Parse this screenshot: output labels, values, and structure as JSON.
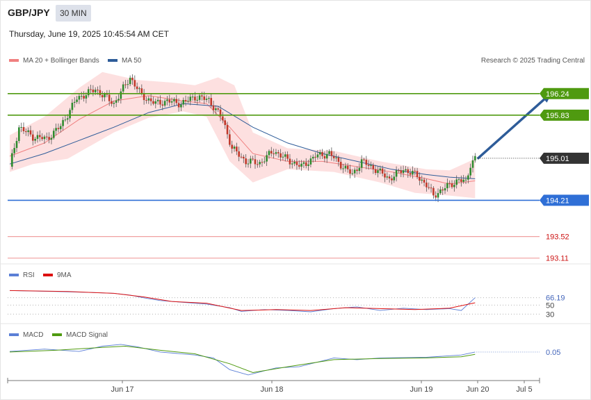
{
  "header": {
    "symbol": "GBP/JPY",
    "interval": "30 MIN",
    "datetime": "Thursday, June 19, 2025 10:45:54 AM CET"
  },
  "chart_data": {
    "type": "candlestick",
    "credit": "Research © 2025 Trading Central",
    "legend": [
      {
        "name": "MA 20 + Bollinger Bands",
        "color": "#f08080"
      },
      {
        "name": "MA 50",
        "color": "#2e5c99"
      }
    ],
    "x_ticks": [
      "Jun 17",
      "Jun 18",
      "Jun 19",
      "Jun 20",
      "Jul 5"
    ],
    "price_axis": {
      "min": 193.0,
      "max": 196.7
    },
    "price_path": [
      [
        0,
        194.85
      ],
      [
        4,
        195.6
      ],
      [
        10,
        195.42
      ],
      [
        16,
        195.38
      ],
      [
        22,
        195.62
      ],
      [
        29,
        196.15
      ],
      [
        37,
        196.32
      ],
      [
        45,
        196.05
      ],
      [
        52,
        196.55
      ],
      [
        57,
        196.2
      ],
      [
        63,
        196.05
      ],
      [
        68,
        196.1
      ],
      [
        74,
        196.05
      ],
      [
        80,
        196.18
      ],
      [
        86,
        196.12
      ],
      [
        92,
        195.75
      ],
      [
        96,
        195.2
      ],
      [
        102,
        194.95
      ],
      [
        108,
        194.92
      ],
      [
        114,
        195.15
      ],
      [
        120,
        194.98
      ],
      [
        126,
        194.85
      ],
      [
        132,
        195.05
      ],
      [
        138,
        195.1
      ],
      [
        144,
        194.85
      ],
      [
        148,
        194.7
      ],
      [
        152,
        194.95
      ],
      [
        158,
        194.8
      ],
      [
        164,
        194.62
      ],
      [
        170,
        194.8
      ],
      [
        176,
        194.68
      ],
      [
        180,
        194.5
      ],
      [
        183,
        194.3
      ],
      [
        188,
        194.45
      ],
      [
        194,
        194.6
      ],
      [
        197,
        194.55
      ],
      [
        199,
        194.9
      ],
      [
        201,
        195.01
      ]
    ],
    "ma20_path": [
      [
        0,
        195.05
      ],
      [
        15,
        195.3
      ],
      [
        30,
        195.75
      ],
      [
        45,
        196.1
      ],
      [
        60,
        196.2
      ],
      [
        75,
        196.1
      ],
      [
        85,
        196.05
      ],
      [
        95,
        195.6
      ],
      [
        105,
        195.1
      ],
      [
        120,
        194.95
      ],
      [
        135,
        194.95
      ],
      [
        150,
        194.85
      ],
      [
        165,
        194.75
      ],
      [
        180,
        194.62
      ],
      [
        190,
        194.52
      ],
      [
        201,
        194.58
      ]
    ],
    "ma50_path": [
      [
        0,
        194.9
      ],
      [
        15,
        195.1
      ],
      [
        30,
        195.35
      ],
      [
        45,
        195.6
      ],
      [
        60,
        195.88
      ],
      [
        75,
        196.05
      ],
      [
        90,
        196.0
      ],
      [
        105,
        195.6
      ],
      [
        120,
        195.3
      ],
      [
        135,
        195.1
      ],
      [
        150,
        194.95
      ],
      [
        165,
        194.8
      ],
      [
        180,
        194.7
      ],
      [
        190,
        194.65
      ],
      [
        201,
        194.62
      ]
    ],
    "bollinger_upper": [
      [
        0,
        195.45
      ],
      [
        15,
        195.8
      ],
      [
        30,
        196.35
      ],
      [
        40,
        196.65
      ],
      [
        55,
        196.5
      ],
      [
        70,
        196.45
      ],
      [
        80,
        196.4
      ],
      [
        90,
        196.55
      ],
      [
        97,
        196.4
      ],
      [
        105,
        195.5
      ],
      [
        120,
        195.2
      ],
      [
        140,
        195.15
      ],
      [
        160,
        194.95
      ],
      [
        180,
        194.8
      ],
      [
        190,
        194.78
      ],
      [
        201,
        195.0
      ]
    ],
    "bollinger_lower": [
      [
        0,
        194.75
      ],
      [
        10,
        194.9
      ],
      [
        25,
        195.0
      ],
      [
        35,
        195.25
      ],
      [
        45,
        195.5
      ],
      [
        60,
        195.78
      ],
      [
        75,
        195.9
      ],
      [
        85,
        195.8
      ],
      [
        95,
        194.95
      ],
      [
        105,
        194.55
      ],
      [
        120,
        194.8
      ],
      [
        140,
        194.75
      ],
      [
        160,
        194.55
      ],
      [
        175,
        194.35
      ],
      [
        190,
        194.3
      ],
      [
        201,
        194.25
      ]
    ],
    "forecast_arrow": {
      "from": [
        202,
        195.0
      ],
      "to": [
        230,
        196.24
      ]
    },
    "levels": [
      {
        "value": "196.24",
        "price": 196.24,
        "color": "#4f9a10",
        "style": "solid",
        "tag": true
      },
      {
        "value": "195.83",
        "price": 195.83,
        "color": "#4f9a10",
        "style": "solid",
        "tag": true
      },
      {
        "value": "195.01",
        "price": 195.01,
        "color": "#333333",
        "style": "dotted",
        "tag": true
      },
      {
        "value": "194.21",
        "price": 194.21,
        "color": "#2f6fd6",
        "style": "solid",
        "tag": true
      },
      {
        "value": "193.52",
        "price": 193.52,
        "color": "#f0a0a0",
        "style": "solid",
        "tag": false
      },
      {
        "value": "193.11",
        "price": 193.11,
        "color": "#f0a0a0",
        "style": "solid",
        "tag": false
      }
    ],
    "rsi": {
      "legend": [
        {
          "name": "RSI",
          "color": "#5b7fd6"
        },
        {
          "name": "9MA",
          "color": "#dd1111"
        }
      ],
      "ticks": [
        {
          "label": "66.19",
          "value": 66.19
        },
        {
          "label": "50",
          "value": 50
        },
        {
          "label": "30",
          "value": 30
        }
      ],
      "range": [
        15,
        95
      ],
      "rsi_path": [
        [
          0,
          82
        ],
        [
          20,
          80
        ],
        [
          35,
          78
        ],
        [
          45,
          76
        ],
        [
          52,
          72
        ],
        [
          58,
          66
        ],
        [
          65,
          60
        ],
        [
          75,
          56
        ],
        [
          85,
          52
        ],
        [
          95,
          44
        ],
        [
          100,
          36
        ],
        [
          110,
          40
        ],
        [
          120,
          38
        ],
        [
          130,
          35
        ],
        [
          140,
          42
        ],
        [
          150,
          46
        ],
        [
          160,
          38
        ],
        [
          170,
          43
        ],
        [
          180,
          40
        ],
        [
          190,
          42
        ],
        [
          195,
          38
        ],
        [
          201,
          66.19
        ]
      ],
      "ma_path": [
        [
          0,
          82
        ],
        [
          25,
          80
        ],
        [
          45,
          76
        ],
        [
          58,
          68
        ],
        [
          70,
          58
        ],
        [
          85,
          54
        ],
        [
          100,
          38
        ],
        [
          115,
          40
        ],
        [
          130,
          38
        ],
        [
          145,
          44
        ],
        [
          160,
          42
        ],
        [
          175,
          40
        ],
        [
          190,
          43
        ],
        [
          201,
          55
        ]
      ]
    },
    "macd": {
      "legend": [
        {
          "name": "MACD",
          "color": "#5b7fd6"
        },
        {
          "name": "MACD Signal",
          "color": "#4f9a10"
        }
      ],
      "ticks": [
        {
          "label": "0.05",
          "value": 0.05
        }
      ],
      "range": [
        -0.4,
        0.25
      ],
      "macd_path": [
        [
          0,
          0.06
        ],
        [
          15,
          0.1
        ],
        [
          30,
          0.06
        ],
        [
          40,
          0.15
        ],
        [
          48,
          0.18
        ],
        [
          55,
          0.14
        ],
        [
          65,
          0.05
        ],
        [
          80,
          0.0
        ],
        [
          88,
          -0.05
        ],
        [
          95,
          -0.25
        ],
        [
          103,
          -0.34
        ],
        [
          115,
          -0.22
        ],
        [
          125,
          -0.2
        ],
        [
          140,
          -0.05
        ],
        [
          150,
          -0.08
        ],
        [
          160,
          -0.05
        ],
        [
          180,
          -0.04
        ],
        [
          195,
          0.0
        ],
        [
          201,
          0.05
        ]
      ],
      "signal_path": [
        [
          0,
          0.05
        ],
        [
          20,
          0.08
        ],
        [
          40,
          0.13
        ],
        [
          50,
          0.15
        ],
        [
          65,
          0.08
        ],
        [
          80,
          0.02
        ],
        [
          95,
          -0.15
        ],
        [
          105,
          -0.3
        ],
        [
          120,
          -0.2
        ],
        [
          140,
          -0.08
        ],
        [
          160,
          -0.06
        ],
        [
          180,
          -0.05
        ],
        [
          195,
          -0.03
        ],
        [
          201,
          0.01
        ]
      ]
    }
  }
}
